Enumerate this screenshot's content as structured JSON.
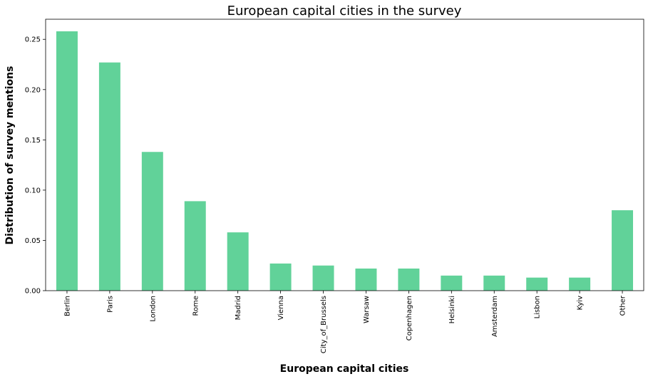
{
  "chart_data": {
    "type": "bar",
    "title": "European capital cities in the survey",
    "xlabel": "European capital cities",
    "ylabel": "Distribution of survey mentions",
    "categories": [
      "Berlin",
      "Paris",
      "London",
      "Rome",
      "Madrid",
      "Vienna",
      "City_of_Brussels",
      "Warsaw",
      "Copenhagen",
      "Helsinki",
      "Amsterdam",
      "Lisbon",
      "Kyiv",
      "Other"
    ],
    "values": [
      0.258,
      0.227,
      0.138,
      0.089,
      0.058,
      0.027,
      0.025,
      0.022,
      0.022,
      0.015,
      0.015,
      0.013,
      0.013,
      0.08
    ],
    "ylim": [
      0,
      0.27
    ],
    "yticks": [
      "0.00",
      "0.05",
      "0.10",
      "0.15",
      "0.20",
      "0.25"
    ],
    "grid": false,
    "bar_color": "#61d299"
  }
}
